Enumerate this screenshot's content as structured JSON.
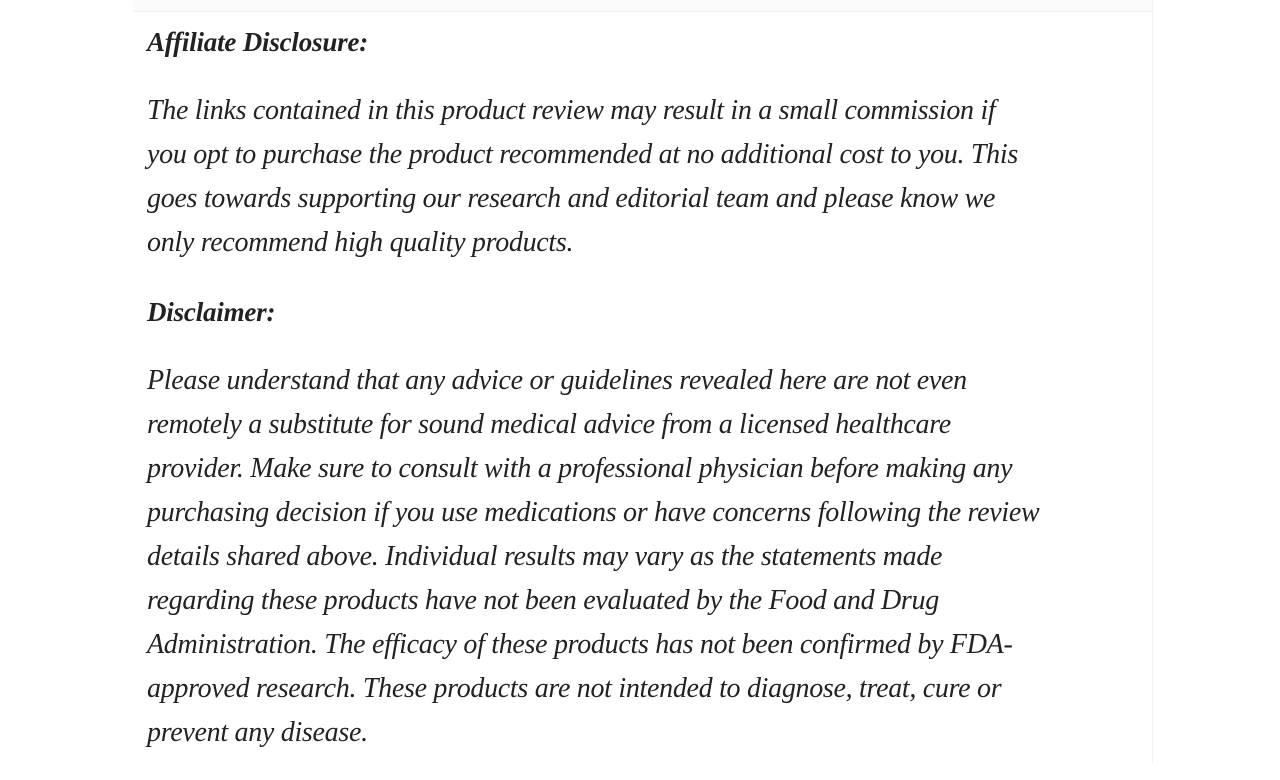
{
  "page": {
    "background_color": "#ffffff",
    "divider_color": "#f0f0f0",
    "text_color": "#222222"
  },
  "article": {
    "sections": [
      {
        "heading": "Affiliate Disclosure:",
        "body": "The links contained in this product review may result in a small commission if\nyou opt to purchase the product recommended at no additional cost to you. This\ngoes towards supporting our research and editorial team and please know we\nonly recommend high quality products."
      },
      {
        "heading": "Disclaimer:",
        "body": "Please understand that any advice or guidelines revealed here are not even\nremotely a substitute for sound medical advice from a licensed healthcare\nprovider. Make sure to consult with a professional physician before making any\npurchasing decision if you use medications or have concerns following the review\ndetails shared above. Individual results may vary as the statements made\nregarding these products have not been evaluated by the Food and Drug\nAdministration. The efficacy of these products has not been confirmed by FDA-\napproved research. These products are not intended to diagnose, treat, cure or\nprevent any disease."
      }
    ]
  }
}
